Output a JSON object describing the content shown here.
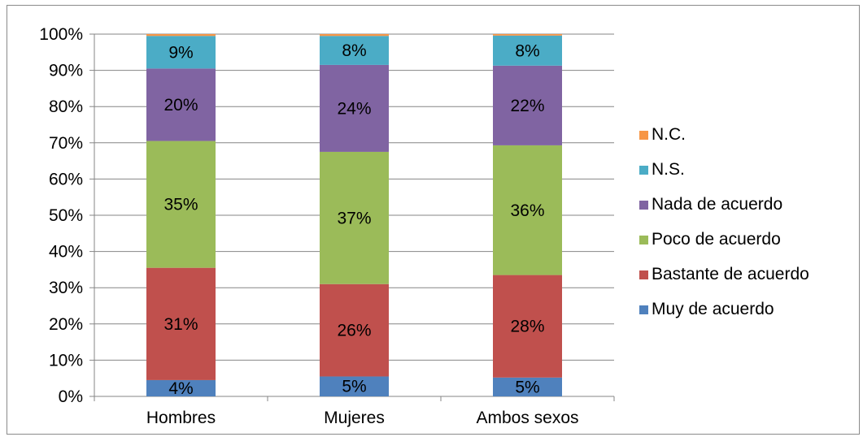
{
  "chart_data": {
    "type": "bar",
    "stacked": "percent",
    "categories": [
      "Hombres",
      "Mujeres",
      "Ambos sexos"
    ],
    "ylim": [
      0,
      100
    ],
    "yticks": [
      "0%",
      "10%",
      "20%",
      "30%",
      "40%",
      "50%",
      "60%",
      "70%",
      "80%",
      "90%",
      "100%"
    ],
    "grid": true,
    "legend_position": "right",
    "series": [
      {
        "name": "Muy de acuerdo",
        "color": "#4F81BD",
        "values": [
          4.5,
          5.5,
          5.2
        ],
        "labels": [
          "4%",
          "5%",
          "5%"
        ]
      },
      {
        "name": "Bastante de acuerdo",
        "color": "#C0504D",
        "values": [
          31.0,
          25.5,
          28.3
        ],
        "labels": [
          "31%",
          "26%",
          "28%"
        ]
      },
      {
        "name": "Poco de acuerdo",
        "color": "#9BBB59",
        "values": [
          35.0,
          36.5,
          35.8
        ],
        "labels": [
          "35%",
          "37%",
          "36%"
        ]
      },
      {
        "name": "Nada de acuerdo",
        "color": "#8064A2",
        "values": [
          20.0,
          24.0,
          22.0
        ],
        "labels": [
          "20%",
          "24%",
          "22%"
        ]
      },
      {
        "name": "N.S.",
        "color": "#4BACC6",
        "values": [
          9.0,
          8.0,
          8.3
        ],
        "labels": [
          "9%",
          "8%",
          "8%"
        ]
      },
      {
        "name": "N.C.",
        "color": "#F79646",
        "values": [
          0.5,
          0.5,
          0.4
        ],
        "labels": [
          "",
          "",
          ""
        ]
      }
    ],
    "legend_order": [
      "N.C.",
      "N.S.",
      "Nada de acuerdo",
      "Poco de acuerdo",
      "Bastante de acuerdo",
      "Muy de acuerdo"
    ]
  }
}
